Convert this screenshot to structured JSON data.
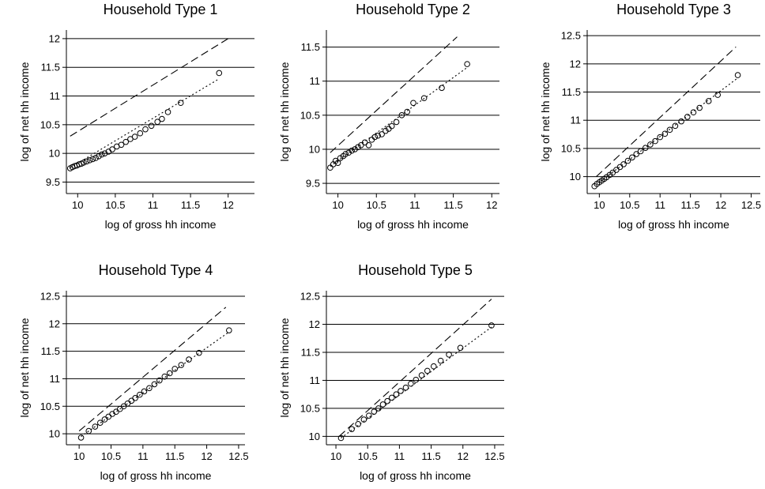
{
  "chart_data": [
    {
      "type": "scatter",
      "title": "Household Type 1",
      "x_label": "log of gross hh income",
      "y_label": "log of net hh income",
      "xlim": [
        9.85,
        12.35
      ],
      "ylim": [
        9.3,
        12.15
      ],
      "xticks": [
        10,
        10.5,
        11,
        11.5,
        12
      ],
      "yticks": [
        9.5,
        10,
        10.5,
        11,
        11.5,
        12
      ],
      "grid": true,
      "series": [
        {
          "kind": "points",
          "color": "#000000",
          "x": [
            9.9,
            9.93,
            9.96,
            9.99,
            10.02,
            10.05,
            10.08,
            10.12,
            10.16,
            10.2,
            10.24,
            10.28,
            10.32,
            10.36,
            10.41,
            10.46,
            10.52,
            10.58,
            10.64,
            10.7,
            10.76,
            10.83,
            10.9,
            10.98,
            11.06,
            11.12,
            11.2,
            11.37,
            11.88
          ],
          "values": [
            9.74,
            9.76,
            9.78,
            9.79,
            9.81,
            9.82,
            9.84,
            9.86,
            9.88,
            9.9,
            9.92,
            9.95,
            9.98,
            10.0,
            10.03,
            10.07,
            10.12,
            10.15,
            10.2,
            10.25,
            10.29,
            10.35,
            10.42,
            10.48,
            10.55,
            10.6,
            10.72,
            10.88,
            11.4
          ]
        },
        {
          "kind": "dashed",
          "color": "#000000",
          "x": [
            9.9,
            12.0
          ],
          "values": [
            10.3,
            12.0
          ]
        },
        {
          "kind": "dotted",
          "color": "#000000",
          "x": [
            9.9,
            11.88
          ],
          "values": [
            9.75,
            11.3
          ]
        }
      ]
    },
    {
      "type": "scatter",
      "title": "Household Type 2",
      "x_label": "log of gross hh income",
      "y_label": "log of net hh income",
      "xlim": [
        9.85,
        12.1
      ],
      "ylim": [
        9.35,
        11.75
      ],
      "xticks": [
        10,
        10.5,
        11,
        11.5,
        12
      ],
      "yticks": [
        9.5,
        10,
        10.5,
        11,
        11.5
      ],
      "grid": true,
      "series": [
        {
          "kind": "points",
          "color": "#000000",
          "x": [
            9.9,
            9.94,
            9.97,
            10.0,
            10.03,
            10.07,
            10.1,
            10.14,
            10.18,
            10.22,
            10.26,
            10.3,
            10.35,
            10.4,
            10.44,
            10.48,
            10.52,
            10.57,
            10.62,
            10.66,
            10.7,
            10.76,
            10.83,
            10.9,
            10.98,
            11.12,
            11.35,
            11.68
          ],
          "values": [
            9.73,
            9.78,
            9.83,
            9.8,
            9.87,
            9.9,
            9.93,
            9.95,
            9.98,
            10.0,
            10.03,
            10.06,
            10.1,
            10.06,
            10.14,
            10.18,
            10.2,
            10.22,
            10.27,
            10.3,
            10.34,
            10.4,
            10.5,
            10.55,
            10.68,
            10.75,
            10.9,
            11.25
          ]
        },
        {
          "kind": "dashed",
          "color": "#000000",
          "x": [
            9.9,
            11.55
          ],
          "values": [
            9.95,
            11.65
          ]
        },
        {
          "kind": "dotted",
          "color": "#000000",
          "x": [
            9.9,
            11.68
          ],
          "values": [
            9.75,
            11.2
          ]
        }
      ]
    },
    {
      "type": "scatter",
      "title": "Household Type 3",
      "x_label": "log of gross hh income",
      "y_label": "log of net hh income",
      "xlim": [
        9.8,
        12.65
      ],
      "ylim": [
        9.7,
        12.6
      ],
      "xticks": [
        10,
        10.5,
        11,
        11.5,
        12,
        12.5
      ],
      "yticks": [
        10,
        10.5,
        11,
        11.5,
        12,
        12.5
      ],
      "grid": true,
      "series": [
        {
          "kind": "points",
          "color": "#000000",
          "x": [
            9.92,
            9.96,
            10.0,
            10.04,
            10.08,
            10.12,
            10.17,
            10.22,
            10.28,
            10.34,
            10.4,
            10.47,
            10.54,
            10.61,
            10.68,
            10.76,
            10.84,
            10.92,
            11.0,
            11.08,
            11.16,
            11.25,
            11.35,
            11.45,
            11.55,
            11.65,
            11.8,
            11.95,
            12.28
          ],
          "values": [
            9.83,
            9.87,
            9.9,
            9.93,
            9.96,
            9.99,
            10.03,
            10.07,
            10.12,
            10.17,
            10.22,
            10.28,
            10.34,
            10.4,
            10.45,
            10.51,
            10.57,
            10.63,
            10.7,
            10.76,
            10.83,
            10.9,
            10.98,
            11.06,
            11.14,
            11.22,
            11.34,
            11.45,
            11.8
          ]
        },
        {
          "kind": "dashed",
          "color": "#000000",
          "x": [
            9.95,
            12.25
          ],
          "values": [
            10.0,
            12.3
          ]
        },
        {
          "kind": "dotted",
          "color": "#000000",
          "x": [
            10.0,
            12.28
          ],
          "values": [
            9.9,
            11.75
          ]
        }
      ]
    },
    {
      "type": "scatter",
      "title": "Household Type 4",
      "x_label": "log of gross hh income",
      "y_label": "log of net hh income",
      "xlim": [
        9.8,
        12.6
      ],
      "ylim": [
        9.8,
        12.6
      ],
      "xticks": [
        10,
        10.5,
        11,
        11.5,
        12,
        12.5
      ],
      "yticks": [
        10,
        10.5,
        11,
        11.5,
        12,
        12.5
      ],
      "grid": true,
      "series": [
        {
          "kind": "points",
          "color": "#000000",
          "x": [
            10.03,
            10.15,
            10.25,
            10.33,
            10.4,
            10.46,
            10.52,
            10.58,
            10.64,
            10.7,
            10.76,
            10.82,
            10.88,
            10.95,
            11.02,
            11.1,
            11.18,
            11.26,
            11.34,
            11.42,
            11.5,
            11.6,
            11.72,
            11.88,
            12.35
          ],
          "values": [
            9.93,
            10.05,
            10.13,
            10.2,
            10.26,
            10.31,
            10.36,
            10.4,
            10.45,
            10.5,
            10.55,
            10.6,
            10.65,
            10.71,
            10.77,
            10.83,
            10.9,
            10.97,
            11.04,
            11.1,
            11.18,
            11.25,
            11.35,
            11.47,
            11.88
          ]
        },
        {
          "kind": "dashed",
          "color": "#000000",
          "x": [
            10.0,
            12.3
          ],
          "values": [
            10.05,
            12.3
          ]
        },
        {
          "kind": "dotted",
          "color": "#000000",
          "x": [
            10.03,
            12.35
          ],
          "values": [
            9.95,
            11.85
          ]
        }
      ]
    },
    {
      "type": "scatter",
      "title": "Household Type 5",
      "x_label": "log of gross hh income",
      "y_label": "log of net hh income",
      "xlim": [
        9.85,
        12.65
      ],
      "ylim": [
        9.85,
        12.6
      ],
      "xticks": [
        10,
        10.5,
        11,
        11.5,
        12,
        12.5
      ],
      "yticks": [
        10,
        10.5,
        11,
        11.5,
        12,
        12.5
      ],
      "grid": true,
      "series": [
        {
          "kind": "points",
          "color": "#000000",
          "x": [
            10.08,
            10.25,
            10.35,
            10.44,
            10.52,
            10.6,
            10.67,
            10.74,
            10.81,
            10.88,
            10.95,
            11.02,
            11.1,
            11.18,
            11.26,
            11.35,
            11.44,
            11.54,
            11.65,
            11.78,
            11.96,
            12.45
          ],
          "values": [
            9.97,
            10.13,
            10.22,
            10.3,
            10.37,
            10.44,
            10.5,
            10.57,
            10.63,
            10.69,
            10.75,
            10.81,
            10.87,
            10.94,
            11.01,
            11.09,
            11.17,
            11.25,
            11.35,
            11.46,
            11.58,
            11.98
          ]
        },
        {
          "kind": "dashed",
          "color": "#000000",
          "x": [
            10.05,
            12.45
          ],
          "values": [
            10.0,
            12.45
          ]
        },
        {
          "kind": "dotted",
          "color": "#000000",
          "x": [
            10.08,
            12.45
          ],
          "values": [
            9.97,
            11.95
          ]
        }
      ]
    }
  ]
}
